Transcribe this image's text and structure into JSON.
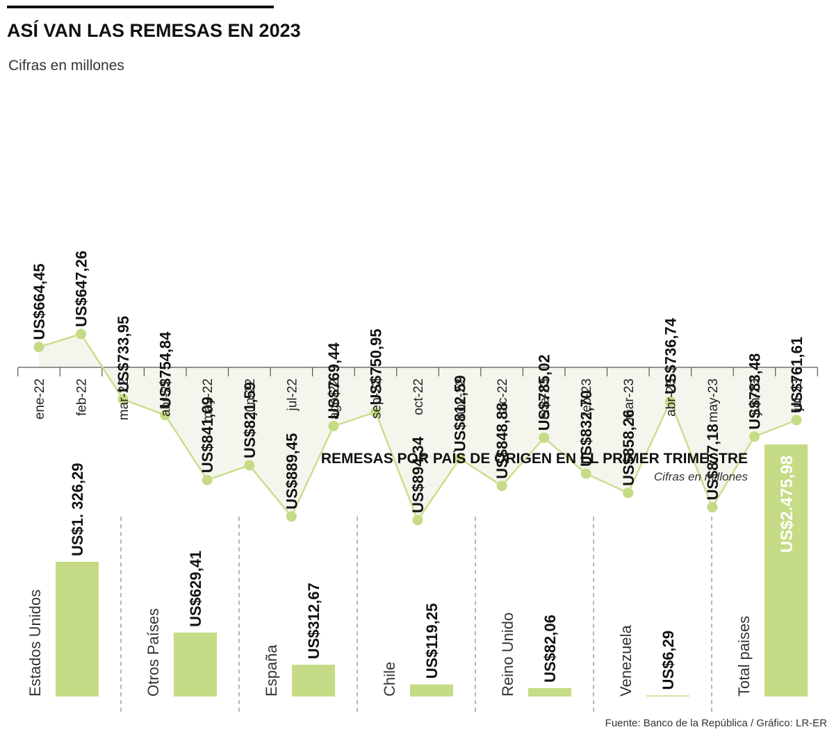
{
  "header": {
    "title": "ASÍ VAN LAS REMESAS EN 2023",
    "subtitle": "Cifras en millones"
  },
  "colors": {
    "accent": "#c5db85",
    "line": "#c9de8c",
    "area": "#f4f6ee",
    "text": "#111111"
  },
  "chart_data": [
    {
      "type": "line",
      "title": "ASÍ VAN LAS REMESAS EN 2023",
      "subtitle": "Cifras en millones",
      "categories": [
        "ene-22",
        "feb-22",
        "mar-22",
        "abr-22",
        "may-22",
        "jun-22",
        "jul-22",
        "ago-22",
        "sep-22",
        "oct-22",
        "nov-22",
        "dic-22",
        "ene-23",
        "feb-23",
        "mar-23",
        "abr-23",
        "may-23",
        "jun-23",
        "jul-23"
      ],
      "values": [
        664.45,
        647.26,
        733.95,
        754.84,
        841.09,
        821.59,
        889.45,
        769.44,
        750.95,
        894.34,
        812.59,
        848.88,
        785.02,
        832.7,
        858.26,
        736.74,
        877.18,
        783.48,
        761.61
      ],
      "labels": [
        "US$664,45",
        "US$647,26",
        "US$733,95",
        "US$754,84",
        "US$841,09",
        "US$821,59",
        "US$889,45",
        "US$769,44",
        "US$750,95",
        "US$894,34",
        "US$812,59",
        "US$848,88",
        "US$785,02",
        "US$832,70",
        "US$858,26",
        "US$736,74",
        "US$877,18",
        "US$783,48",
        "US$761,61"
      ],
      "grid": false,
      "area_fill": true
    },
    {
      "type": "bar",
      "title": "REMESAS POR PAÍS DE ORIGEN EN EL PRIMER TRIMESTRE",
      "subtitle": "Cifras en millones",
      "categories": [
        "Estados Unidos",
        "Otros Países",
        "España",
        "Chile",
        "Reino Unido",
        "Venezuela",
        "Total paises"
      ],
      "values": [
        1326.29,
        629.41,
        312.67,
        119.25,
        82.06,
        6.29,
        2475.98
      ],
      "labels": [
        "US$1. 326,29",
        "US$629,41",
        "US$312,67",
        "US$119,25",
        "US$82,06",
        "US$6,29",
        "US$2.475,98"
      ]
    }
  ],
  "footer": {
    "source": "Fuente: Banco de la República / Gráfico: LR-ER"
  }
}
